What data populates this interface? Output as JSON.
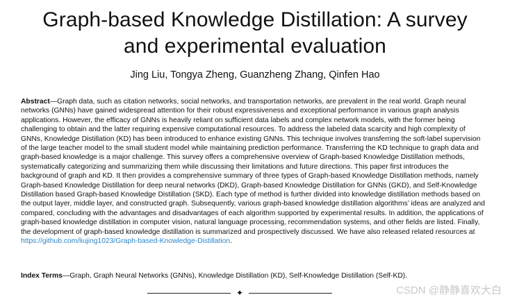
{
  "paper": {
    "title_line1": "Graph-based Knowledge Distillation: A survey",
    "title_line2": "and experimental evaluation",
    "authors": "Jing Liu, Tongya Zheng, Guanzheng Zhang, Qinfen Hao",
    "abstract_label": "Abstract",
    "abstract_text": "—Graph data, such as citation networks, social networks, and transportation networks, are prevalent in the real world. Graph neural networks (GNNs) have gained widespread attention for their robust expressiveness and exceptional performance in various graph analysis applications. However, the efficacy of GNNs is heavily reliant on sufficient data labels and complex network models, with the former being challenging to obtain and the latter requiring expensive computational resources. To address the labeled data scarcity and high complexity of GNNs, Knowledge Distillation (KD) has been introduced to enhance existing GNNs. This technique involves transferring the soft-label supervision of the large teacher model to the small student model while maintaining prediction performance. Transferring the KD technique to graph data and graph-based knowledge is a major challenge. This survey offers a comprehensive overview of Graph-based Knowledge Distillation methods, systematically categorizing and summarizing them while discussing their limitations and future directions. This paper first introduces the background of graph and KD. It then provides a comprehensive summary of three types of Graph-based Knowledge Distillation methods, namely Graph-based Knowledge Distillation for deep neural networks (DKD), Graph-based Knowledge Distillation for GNNs (GKD), and Self-Knowledge Distillation based Graph-based Knowledge Distillation (SKD). Each type of method is further divided into knowledge distillation methods based on the output layer, middle layer, and constructed graph. Subsequently, various graph-based knowledge distillation algorithms’ ideas are analyzed and compared, concluding with the advantages and disadvantages of each algorithm supported by experimental results. In addition, the applications of graph-based knowledge distillation in computer vision, natural language processing, recommendation systems, and other fields are listed. Finally, the development of graph-based knowledge distillation is summarized and prospectively discussed. We have also released related resources at ",
    "abstract_link": "https://github.com/liujing1023/Graph-based-Knowledge-Distillation",
    "abstract_end": ".",
    "index_terms_label": "Index Terms",
    "index_terms_text": "—Graph, Graph Neural Networks (GNNs), Knowledge Distillation (KD), Self-Knowledge Distillation (Self-KD).",
    "divider_glyph": "✦"
  },
  "watermark": "CSDN @静静喜欢大白"
}
